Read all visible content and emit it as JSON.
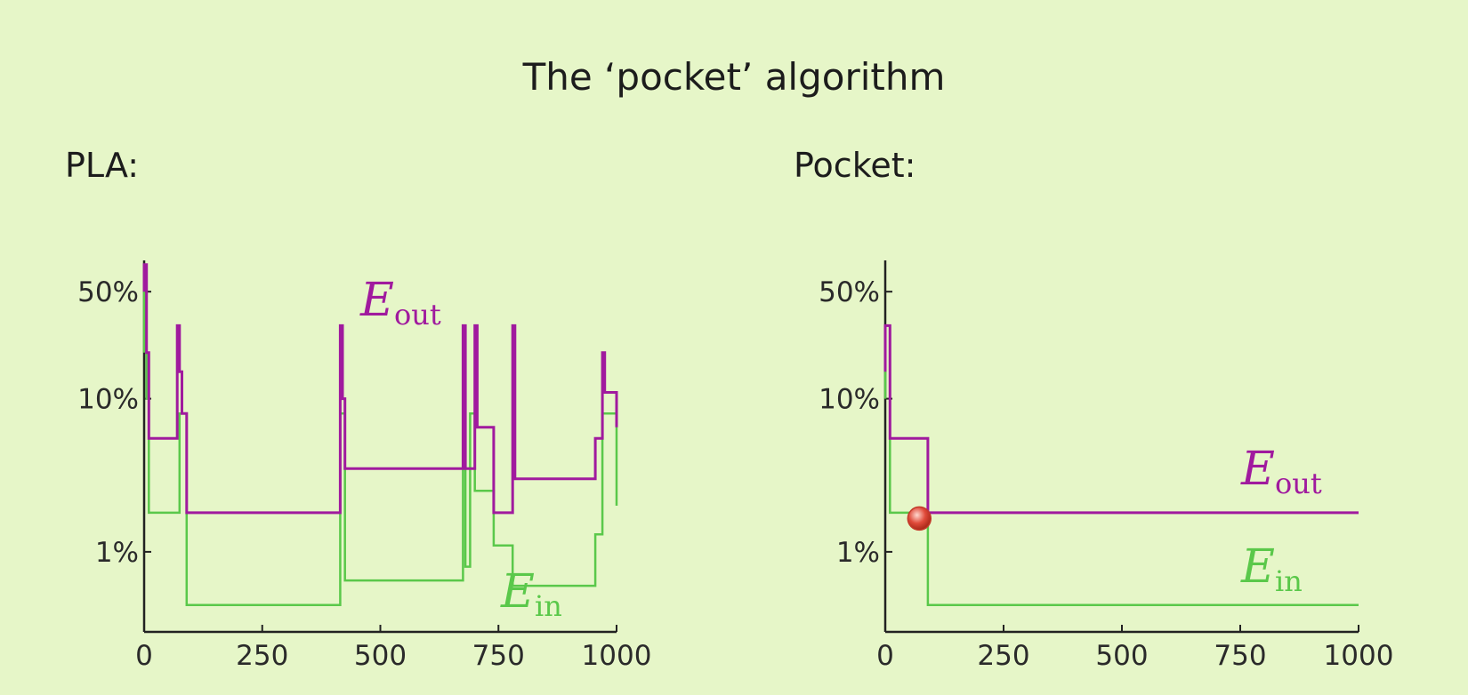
{
  "slide": {
    "title": "The ‘pocket’ algorithm"
  },
  "chart_data": [
    {
      "type": "line",
      "panel_label": "PLA:",
      "xlim": [
        0,
        1000
      ],
      "ylog": true,
      "xticks": [
        0,
        250,
        500,
        750,
        1000
      ],
      "xtick_labels": [
        "0",
        "250",
        "500",
        "750",
        "1000"
      ],
      "yticks": [
        50,
        10,
        1
      ],
      "ytick_labels": [
        "50%",
        "10%",
        "1%"
      ],
      "series": [
        {
          "name": "E",
          "sub": "out",
          "color": "#a01a9e",
          "x": [
            0,
            0,
            5,
            5,
            10,
            10,
            70,
            70,
            75,
            75,
            80,
            80,
            90,
            90,
            415,
            415,
            420,
            420,
            425,
            425,
            675,
            675,
            680,
            680,
            700,
            700,
            705,
            705,
            740,
            740,
            780,
            780,
            785,
            785,
            790,
            790,
            955,
            955,
            970,
            970,
            975,
            975,
            985,
            985,
            1000,
            1000
          ],
          "y": [
            50,
            75,
            75,
            20,
            20,
            5.5,
            5.5,
            30,
            30,
            15,
            15,
            8,
            8,
            1.8,
            1.8,
            30,
            30,
            10,
            10,
            3.5,
            3.5,
            30,
            30,
            3.5,
            3.5,
            30,
            30,
            6.5,
            6.5,
            1.8,
            1.8,
            30,
            30,
            3,
            3,
            3,
            3,
            5.5,
            5.5,
            20,
            20,
            11,
            11,
            11,
            11,
            6.5
          ]
        },
        {
          "name": "E",
          "sub": "in",
          "color": "#5ac84a",
          "x": [
            0,
            0,
            5,
            5,
            10,
            10,
            75,
            75,
            90,
            90,
            415,
            415,
            420,
            420,
            425,
            425,
            675,
            675,
            680,
            680,
            690,
            690,
            700,
            700,
            710,
            710,
            740,
            740,
            780,
            780,
            790,
            790,
            955,
            955,
            970,
            970,
            985,
            985,
            1000,
            1000
          ],
          "y": [
            20,
            75,
            75,
            10,
            10,
            1.8,
            1.8,
            8,
            8,
            0.45,
            0.45,
            8,
            8,
            8,
            8,
            0.65,
            0.65,
            8,
            8,
            0.8,
            0.8,
            8,
            8,
            2.5,
            2.5,
            2.5,
            2.5,
            1.1,
            1.1,
            0.6,
            0.6,
            0.6,
            0.6,
            1.3,
            1.3,
            8,
            8,
            8,
            8,
            2
          ]
        }
      ]
    },
    {
      "type": "line",
      "panel_label": "Pocket:",
      "xlim": [
        0,
        1000
      ],
      "ylog": true,
      "xticks": [
        0,
        250,
        500,
        750,
        1000
      ],
      "xtick_labels": [
        "0",
        "250",
        "500",
        "750",
        "1000"
      ],
      "yticks": [
        50,
        10,
        1
      ],
      "ytick_labels": [
        "50%",
        "10%",
        "1%"
      ],
      "marker": {
        "x": 72,
        "y": 1.65,
        "color": "#e04a3a"
      },
      "series": [
        {
          "name": "E",
          "sub": "out",
          "color": "#a01a9e",
          "x": [
            0,
            0,
            10,
            10,
            90,
            90,
            1000
          ],
          "y": [
            15,
            30,
            30,
            5.5,
            5.5,
            1.8,
            1.8
          ]
        },
        {
          "name": "E",
          "sub": "in",
          "color": "#5ac84a",
          "x": [
            0,
            0,
            10,
            10,
            90,
            90,
            1000
          ],
          "y": [
            10,
            30,
            30,
            1.8,
            1.8,
            0.45,
            0.45
          ]
        }
      ]
    }
  ]
}
